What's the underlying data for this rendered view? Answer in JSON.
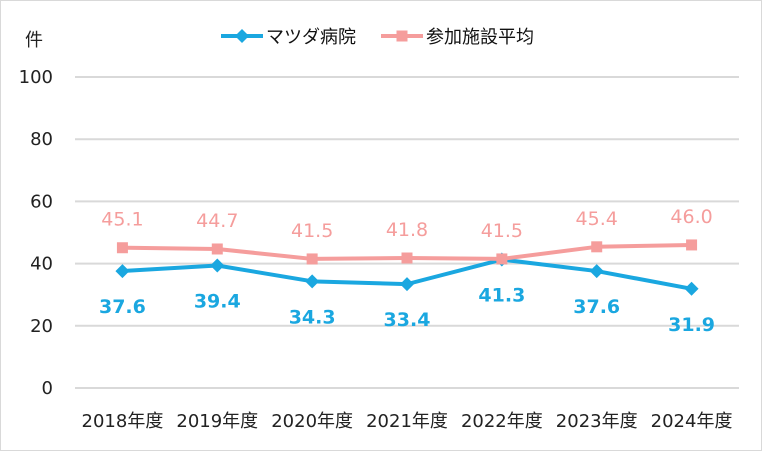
{
  "chart_data": {
    "type": "line",
    "title": "",
    "ylabel": "件",
    "xlabel": "",
    "ylim": [
      0,
      100
    ],
    "yticks": [
      "0",
      "20",
      "40",
      "60",
      "80",
      "100"
    ],
    "grid": true,
    "legend_position": "top",
    "categories": [
      "2018年度",
      "2019年度",
      "2020年度",
      "2021年度",
      "2022年度",
      "2023年度",
      "2024年度"
    ],
    "series": [
      {
        "name": "マツダ病院",
        "marker": "diamond",
        "color": "#1aa7e0",
        "values": [
          37.6,
          39.4,
          34.3,
          33.4,
          41.3,
          37.6,
          31.9
        ],
        "labels": [
          "37.6",
          "39.4",
          "34.3",
          "33.4",
          "41.3",
          "37.6",
          "31.9"
        ],
        "label_position": "below"
      },
      {
        "name": "参加施設平均",
        "marker": "square",
        "color": "#f59d9c",
        "values": [
          45.1,
          44.7,
          41.5,
          41.8,
          41.5,
          45.4,
          46.0
        ],
        "labels": [
          "45.1",
          "44.7",
          "41.5",
          "41.8",
          "41.5",
          "45.4",
          "46.0"
        ],
        "label_position": "above"
      }
    ]
  }
}
